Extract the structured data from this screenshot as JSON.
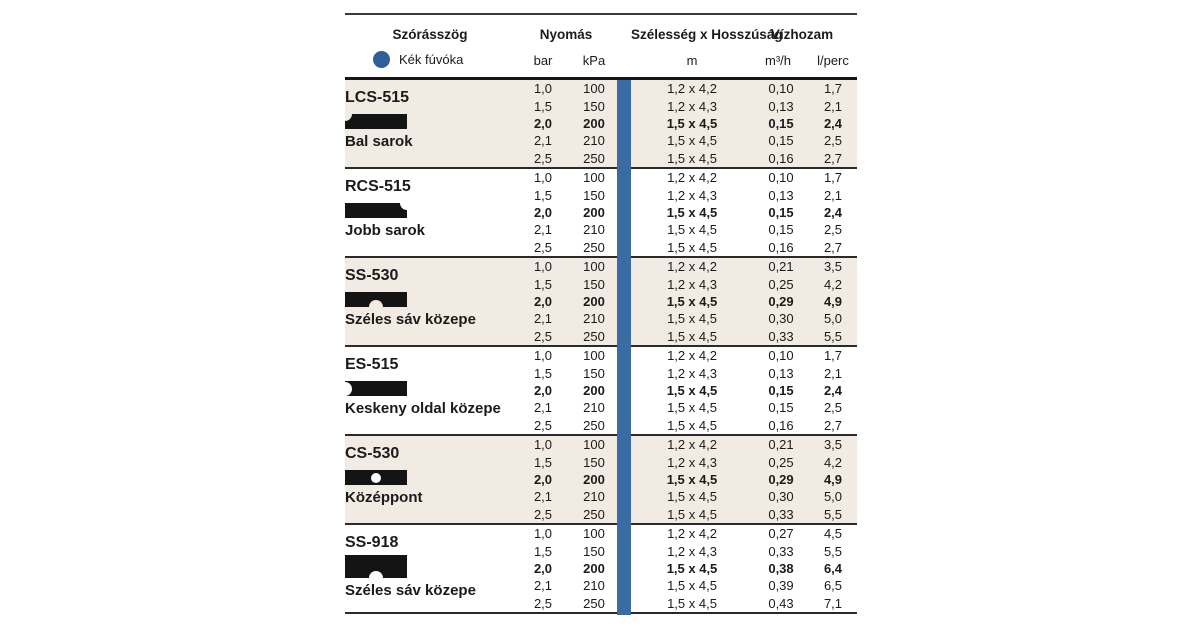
{
  "header": {
    "col_angle": "Szórásszög",
    "col_pressure": "Nyomás",
    "col_dimensions": "Szélesség x Hosszúság",
    "col_flow": "Vízhozam",
    "legend_label": "Kék fúvóka",
    "unit_bar": "bar",
    "unit_kpa": "kPa",
    "unit_m": "m",
    "unit_m3h": "m³/h",
    "unit_lperc": "l/perc"
  },
  "colors": {
    "accent_blue": "#3b6ba3",
    "legend_circle_blue": "#2e5f96",
    "shaded_row_beige": "#f2ebe4",
    "icon_black": "#141414",
    "line_dark": "#2a2a2a"
  },
  "groups": [
    {
      "model": "LCS-515",
      "pattern": "Bal sarok",
      "icon": "notch-top-left",
      "shaded": true,
      "tall_icon": false,
      "rows": [
        {
          "bar": "1,0",
          "kpa": "100",
          "dim": "1,2 x 4,2",
          "m3h": "0,10",
          "lperc": "1,7",
          "bold": false
        },
        {
          "bar": "1,5",
          "kpa": "150",
          "dim": "1,2 x 4,3",
          "m3h": "0,13",
          "lperc": "2,1",
          "bold": false
        },
        {
          "bar": "2,0",
          "kpa": "200",
          "dim": "1,5 x 4,5",
          "m3h": "0,15",
          "lperc": "2,4",
          "bold": true
        },
        {
          "bar": "2,1",
          "kpa": "210",
          "dim": "1,5 x 4,5",
          "m3h": "0,15",
          "lperc": "2,5",
          "bold": false
        },
        {
          "bar": "2,5",
          "kpa": "250",
          "dim": "1,5 x 4,5",
          "m3h": "0,16",
          "lperc": "2,7",
          "bold": false
        }
      ]
    },
    {
      "model": "RCS-515",
      "pattern": "Jobb sarok",
      "icon": "notch-top-right",
      "shaded": false,
      "tall_icon": false,
      "rows": [
        {
          "bar": "1,0",
          "kpa": "100",
          "dim": "1,2 x 4,2",
          "m3h": "0,10",
          "lperc": "1,7",
          "bold": false
        },
        {
          "bar": "1,5",
          "kpa": "150",
          "dim": "1,2 x 4,3",
          "m3h": "0,13",
          "lperc": "2,1",
          "bold": false
        },
        {
          "bar": "2,0",
          "kpa": "200",
          "dim": "1,5 x 4,5",
          "m3h": "0,15",
          "lperc": "2,4",
          "bold": true
        },
        {
          "bar": "2,1",
          "kpa": "210",
          "dim": "1,5 x 4,5",
          "m3h": "0,15",
          "lperc": "2,5",
          "bold": false
        },
        {
          "bar": "2,5",
          "kpa": "250",
          "dim": "1,5 x 4,5",
          "m3h": "0,16",
          "lperc": "2,7",
          "bold": false
        }
      ]
    },
    {
      "model": "SS-530",
      "pattern": "Széles sáv közepe",
      "icon": "notch-bottom-center",
      "shaded": true,
      "tall_icon": false,
      "rows": [
        {
          "bar": "1,0",
          "kpa": "100",
          "dim": "1,2 x 4,2",
          "m3h": "0,21",
          "lperc": "3,5",
          "bold": false
        },
        {
          "bar": "1,5",
          "kpa": "150",
          "dim": "1,2 x 4,3",
          "m3h": "0,25",
          "lperc": "4,2",
          "bold": false
        },
        {
          "bar": "2,0",
          "kpa": "200",
          "dim": "1,5 x 4,5",
          "m3h": "0,29",
          "lperc": "4,9",
          "bold": true
        },
        {
          "bar": "2,1",
          "kpa": "210",
          "dim": "1,5 x 4,5",
          "m3h": "0,30",
          "lperc": "5,0",
          "bold": false
        },
        {
          "bar": "2,5",
          "kpa": "250",
          "dim": "1,5 x 4,5",
          "m3h": "0,33",
          "lperc": "5,5",
          "bold": false
        }
      ]
    },
    {
      "model": "ES-515",
      "pattern": "Keskeny oldal közepe",
      "icon": "notch-left-center",
      "shaded": false,
      "tall_icon": false,
      "rows": [
        {
          "bar": "1,0",
          "kpa": "100",
          "dim": "1,2 x 4,2",
          "m3h": "0,10",
          "lperc": "1,7",
          "bold": false
        },
        {
          "bar": "1,5",
          "kpa": "150",
          "dim": "1,2 x 4,3",
          "m3h": "0,13",
          "lperc": "2,1",
          "bold": false
        },
        {
          "bar": "2,0",
          "kpa": "200",
          "dim": "1,5 x 4,5",
          "m3h": "0,15",
          "lperc": "2,4",
          "bold": true
        },
        {
          "bar": "2,1",
          "kpa": "210",
          "dim": "1,5 x 4,5",
          "m3h": "0,15",
          "lperc": "2,5",
          "bold": false
        },
        {
          "bar": "2,5",
          "kpa": "250",
          "dim": "1,5 x 4,5",
          "m3h": "0,16",
          "lperc": "2,7",
          "bold": false
        }
      ]
    },
    {
      "model": "CS-530",
      "pattern": "Középpont",
      "icon": "center-dot",
      "shaded": true,
      "tall_icon": false,
      "rows": [
        {
          "bar": "1,0",
          "kpa": "100",
          "dim": "1,2 x 4,2",
          "m3h": "0,21",
          "lperc": "3,5",
          "bold": false
        },
        {
          "bar": "1,5",
          "kpa": "150",
          "dim": "1,2 x 4,3",
          "m3h": "0,25",
          "lperc": "4,2",
          "bold": false
        },
        {
          "bar": "2,0",
          "kpa": "200",
          "dim": "1,5 x 4,5",
          "m3h": "0,29",
          "lperc": "4,9",
          "bold": true
        },
        {
          "bar": "2,1",
          "kpa": "210",
          "dim": "1,5 x 4,5",
          "m3h": "0,30",
          "lperc": "5,0",
          "bold": false
        },
        {
          "bar": "2,5",
          "kpa": "250",
          "dim": "1,5 x 4,5",
          "m3h": "0,33",
          "lperc": "5,5",
          "bold": false
        }
      ]
    },
    {
      "model": "SS-918",
      "pattern": "Széles sáv közepe",
      "icon": "notch-bottom-center",
      "shaded": false,
      "tall_icon": true,
      "rows": [
        {
          "bar": "1,0",
          "kpa": "100",
          "dim": "1,2 x 4,2",
          "m3h": "0,27",
          "lperc": "4,5",
          "bold": false
        },
        {
          "bar": "1,5",
          "kpa": "150",
          "dim": "1,2 x 4,3",
          "m3h": "0,33",
          "lperc": "5,5",
          "bold": false
        },
        {
          "bar": "2,0",
          "kpa": "200",
          "dim": "1,5 x 4,5",
          "m3h": "0,38",
          "lperc": "6,4",
          "bold": true
        },
        {
          "bar": "2,1",
          "kpa": "210",
          "dim": "1,5 x 4,5",
          "m3h": "0,39",
          "lperc": "6,5",
          "bold": false
        },
        {
          "bar": "2,5",
          "kpa": "250",
          "dim": "1,5 x 4,5",
          "m3h": "0,43",
          "lperc": "7,1",
          "bold": false
        }
      ]
    }
  ]
}
